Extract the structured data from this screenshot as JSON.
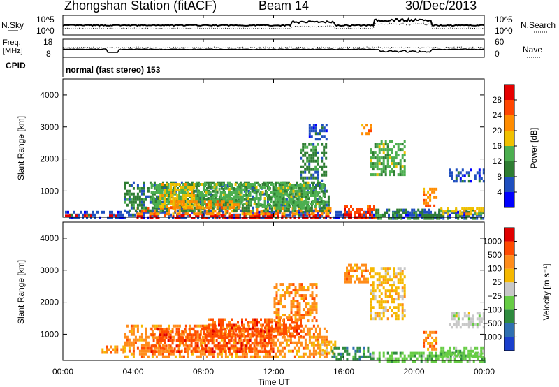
{
  "header": {
    "title": "Zhongshan Station (fitACF)",
    "beam": "Beam 14",
    "date": "30/Dec/2013"
  },
  "top_panel": {
    "left_label": "N.Sky",
    "right_label": "N.Search",
    "left_ticks": [
      "10^5",
      "10^0"
    ],
    "right_ticks": [
      "10^5",
      "10^0"
    ]
  },
  "freq_panel": {
    "left_label_1": "Freq.",
    "left_label_2": "[MHz]",
    "right_label": "Nave",
    "left_ticks": [
      "18",
      "8"
    ],
    "right_ticks": [
      "60",
      "0"
    ]
  },
  "cpid": {
    "label": "CPID",
    "mode": "normal (fast stereo) 153"
  },
  "x_axis": {
    "label": "Time UT",
    "ticks": [
      "00:00",
      "04:00",
      "08:00",
      "12:00",
      "16:00",
      "20:00",
      "00:00"
    ],
    "range_hours": [
      0,
      24
    ]
  },
  "chart_data": [
    {
      "type": "heatmap",
      "name": "power",
      "ylabel": "Slant Range [km]",
      "yticks": [
        1000,
        2000,
        3000,
        4000
      ],
      "ylim": [
        180,
        4500
      ],
      "colorbar_label": "Power [dB]",
      "colorbar_ticks": [
        "4",
        "8",
        "12",
        "16",
        "20",
        "24",
        "28"
      ],
      "colorbar_colors": [
        "#0000ff",
        "#1f4fbf",
        "#2e7d32",
        "#4caf50",
        "#f0c000",
        "#ff8c00",
        "#ff4500",
        "#e60000"
      ],
      "regions": [
        {
          "t0": 0.0,
          "t1": 24.0,
          "r0": 180,
          "r1": 380,
          "level": 1
        },
        {
          "t0": 0.0,
          "t1": 3.0,
          "r0": 180,
          "r1": 260,
          "level": 7
        },
        {
          "t0": 4.2,
          "t1": 15.2,
          "r0": 180,
          "r1": 290,
          "level": 7
        },
        {
          "t0": 4.2,
          "t1": 15.2,
          "r0": 300,
          "r1": 500,
          "level": 5
        },
        {
          "t0": 3.5,
          "t1": 15.2,
          "r0": 400,
          "r1": 1300,
          "level": 2
        },
        {
          "t0": 5.0,
          "t1": 14.8,
          "r0": 500,
          "r1": 1250,
          "level": 3
        },
        {
          "t0": 5.5,
          "t1": 7.5,
          "r0": 550,
          "r1": 1250,
          "level": 4
        },
        {
          "t0": 8.5,
          "t1": 10.5,
          "r0": 600,
          "r1": 1100,
          "level": 3
        },
        {
          "t0": 6.0,
          "t1": 10.0,
          "r0": 480,
          "r1": 700,
          "level": 5
        },
        {
          "t0": 12.0,
          "t1": 14.0,
          "r0": 500,
          "r1": 1300,
          "level": 3
        },
        {
          "t0": 13.5,
          "t1": 15.0,
          "r0": 1300,
          "r1": 2500,
          "level": 2
        },
        {
          "t0": 14.0,
          "t1": 15.0,
          "r0": 2600,
          "r1": 3100,
          "level": 1
        },
        {
          "t0": 16.0,
          "t1": 17.8,
          "r0": 180,
          "r1": 550,
          "level": 6
        },
        {
          "t0": 16.0,
          "t1": 17.5,
          "r0": 180,
          "r1": 300,
          "level": 7
        },
        {
          "t0": 17.8,
          "t1": 24.0,
          "r0": 180,
          "r1": 450,
          "level": 2
        },
        {
          "t0": 20.5,
          "t1": 21.3,
          "r0": 500,
          "r1": 1100,
          "level": 5
        },
        {
          "t0": 21.5,
          "t1": 24.0,
          "r0": 250,
          "r1": 500,
          "level": 4
        },
        {
          "t0": 22.0,
          "t1": 24.0,
          "r0": 1300,
          "r1": 1700,
          "level": 1
        },
        {
          "t0": 17.5,
          "t1": 19.5,
          "r0": 1500,
          "r1": 2600,
          "level": 3
        },
        {
          "t0": 17.0,
          "t1": 17.5,
          "r0": 2800,
          "r1": 3100,
          "level": 5
        }
      ]
    },
    {
      "type": "heatmap",
      "name": "velocity",
      "ylabel": "Slant Range [km]",
      "yticks": [
        1000,
        2000,
        3000,
        4000
      ],
      "ylim": [
        180,
        4500
      ],
      "colorbar_label": "Velocity [m s⁻¹]",
      "colorbar_ticks": [
        "1000",
        "500",
        "100",
        "25",
        "−25",
        "−100",
        "−500",
        "−1000"
      ],
      "colorbar_colors": [
        "#1a3fcc",
        "#2f6fb0",
        "#2e8b3e",
        "#66cc44",
        "#c8c8c8",
        "#f5b800",
        "#ff8c1a",
        "#ff4a00",
        "#e00000"
      ],
      "regions": [
        {
          "t0": 2.2,
          "t1": 3.5,
          "r0": 400,
          "r1": 650,
          "level": 6
        },
        {
          "t0": 3.5,
          "t1": 15.0,
          "r0": 300,
          "r1": 1300,
          "level": 6
        },
        {
          "t0": 5.0,
          "t1": 12.0,
          "r0": 500,
          "r1": 1200,
          "level": 7
        },
        {
          "t0": 8.0,
          "t1": 13.5,
          "r0": 900,
          "r1": 1500,
          "level": 7
        },
        {
          "t0": 12.0,
          "t1": 14.5,
          "r0": 1400,
          "r1": 2600,
          "level": 6
        },
        {
          "t0": 14.5,
          "t1": 15.5,
          "r0": 400,
          "r1": 800,
          "level": 5
        },
        {
          "t0": 15.3,
          "t1": 17.5,
          "r0": 180,
          "r1": 600,
          "level": 2
        },
        {
          "t0": 17.5,
          "t1": 24.0,
          "r0": 180,
          "r1": 450,
          "level": 3
        },
        {
          "t0": 17.5,
          "t1": 19.5,
          "r0": 1500,
          "r1": 3100,
          "level": 5
        },
        {
          "t0": 20.5,
          "t1": 21.3,
          "r0": 500,
          "r1": 1100,
          "level": 6
        },
        {
          "t0": 22.0,
          "t1": 24.0,
          "r0": 1200,
          "r1": 1700,
          "level": 4
        },
        {
          "t0": 21.5,
          "t1": 24.0,
          "r0": 300,
          "r1": 600,
          "level": 3
        },
        {
          "t0": 16.0,
          "t1": 17.5,
          "r0": 2600,
          "r1": 3200,
          "level": 6
        }
      ]
    }
  ]
}
